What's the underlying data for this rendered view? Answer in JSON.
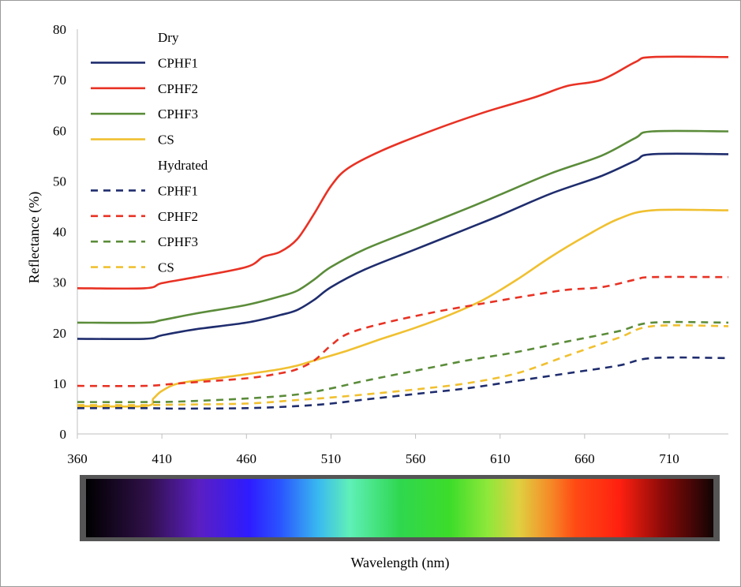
{
  "chart_data": {
    "type": "line",
    "xlabel": "Wavelength (nm)",
    "ylabel": "Reflectance (%)",
    "xlim": [
      360,
      745
    ],
    "ylim": [
      0,
      80
    ],
    "x_ticks": [
      360,
      410,
      460,
      510,
      560,
      610,
      660,
      710
    ],
    "y_ticks": [
      0,
      10,
      20,
      30,
      40,
      50,
      60,
      70,
      80
    ],
    "grid": false,
    "legend_placement": "top-left",
    "legend_groups": [
      "Dry",
      "Hydrated"
    ],
    "series": [
      {
        "name": "CPHF1",
        "group": "Dry",
        "color": "#1f2d6e",
        "dash": "solid",
        "x": [
          360,
          400,
          410,
          430,
          460,
          480,
          490,
          500,
          510,
          530,
          560,
          590,
          610,
          640,
          670,
          690,
          700,
          745
        ],
        "y": [
          18.8,
          18.8,
          19.5,
          20.7,
          22.0,
          23.5,
          24.5,
          26.5,
          29.0,
          32.5,
          36.5,
          40.5,
          43.2,
          47.5,
          51.0,
          54.0,
          55.3,
          55.3
        ]
      },
      {
        "name": "CPHF2",
        "group": "Dry",
        "color": "#e83224",
        "dash": "solid",
        "x": [
          360,
          400,
          410,
          430,
          460,
          470,
          480,
          490,
          500,
          510,
          520,
          540,
          570,
          600,
          630,
          650,
          670,
          690,
          700,
          745
        ],
        "y": [
          28.8,
          28.8,
          29.8,
          31.0,
          33.0,
          35.0,
          36.0,
          38.5,
          43.5,
          49.0,
          52.5,
          56.0,
          60.0,
          63.5,
          66.5,
          68.8,
          70.0,
          73.5,
          74.5,
          74.5
        ]
      },
      {
        "name": "CPHF3",
        "group": "Dry",
        "color": "#5b8c3a",
        "dash": "solid",
        "x": [
          360,
          400,
          410,
          430,
          460,
          480,
          490,
          500,
          510,
          530,
          560,
          590,
          610,
          640,
          670,
          690,
          700,
          745
        ],
        "y": [
          22.0,
          22.0,
          22.5,
          23.8,
          25.5,
          27.2,
          28.3,
          30.5,
          33.0,
          36.5,
          40.5,
          44.5,
          47.3,
          51.5,
          55.0,
          58.5,
          59.8,
          59.8
        ]
      },
      {
        "name": "CS",
        "group": "Dry",
        "color": "#f0c030",
        "dash": "solid",
        "x": [
          360,
          400,
          405,
          410,
          420,
          440,
          460,
          480,
          490,
          500,
          520,
          540,
          560,
          580,
          600,
          620,
          640,
          660,
          680,
          700,
          745
        ],
        "y": [
          5.5,
          5.5,
          7.0,
          8.5,
          10.0,
          10.9,
          11.8,
          12.8,
          13.5,
          14.5,
          16.5,
          18.8,
          21.0,
          23.5,
          26.5,
          30.5,
          35.0,
          39.0,
          42.5,
          44.2,
          44.2
        ]
      },
      {
        "name": "CPHF1",
        "group": "Hydrated",
        "color": "#1f2d6e",
        "dash": "dashed",
        "x": [
          360,
          400,
          420,
          460,
          490,
          510,
          530,
          560,
          590,
          620,
          650,
          680,
          700,
          745
        ],
        "y": [
          5.1,
          5.1,
          5.0,
          5.1,
          5.5,
          6.0,
          6.8,
          7.9,
          9.0,
          10.5,
          12.0,
          13.5,
          15.0,
          15.0
        ]
      },
      {
        "name": "CPHF2",
        "group": "Hydrated",
        "color": "#e83224",
        "dash": "dashed",
        "x": [
          360,
          400,
          420,
          460,
          480,
          490,
          500,
          510,
          520,
          540,
          570,
          600,
          630,
          650,
          670,
          690,
          700,
          745
        ],
        "y": [
          9.5,
          9.5,
          10.0,
          11.0,
          12.0,
          12.8,
          14.5,
          17.5,
          19.8,
          21.8,
          24.0,
          25.8,
          27.5,
          28.5,
          29.0,
          30.5,
          31.0,
          31.0
        ]
      },
      {
        "name": "CPHF3",
        "group": "Hydrated",
        "color": "#5b8c3a",
        "dash": "dashed",
        "x": [
          360,
          400,
          420,
          460,
          490,
          510,
          530,
          560,
          590,
          620,
          650,
          680,
          700,
          745
        ],
        "y": [
          6.3,
          6.3,
          6.4,
          7.0,
          7.8,
          9.0,
          10.5,
          12.5,
          14.5,
          16.2,
          18.3,
          20.3,
          22.0,
          22.0
        ]
      },
      {
        "name": "CS",
        "group": "Hydrated",
        "color": "#f0c030",
        "dash": "dashed",
        "x": [
          360,
          400,
          420,
          460,
          490,
          510,
          530,
          560,
          590,
          620,
          650,
          680,
          700,
          745
        ],
        "y": [
          5.7,
          5.7,
          5.8,
          6.0,
          6.7,
          7.2,
          7.8,
          8.8,
          10.0,
          12.0,
          15.5,
          19.0,
          21.3,
          21.3
        ]
      }
    ]
  }
}
